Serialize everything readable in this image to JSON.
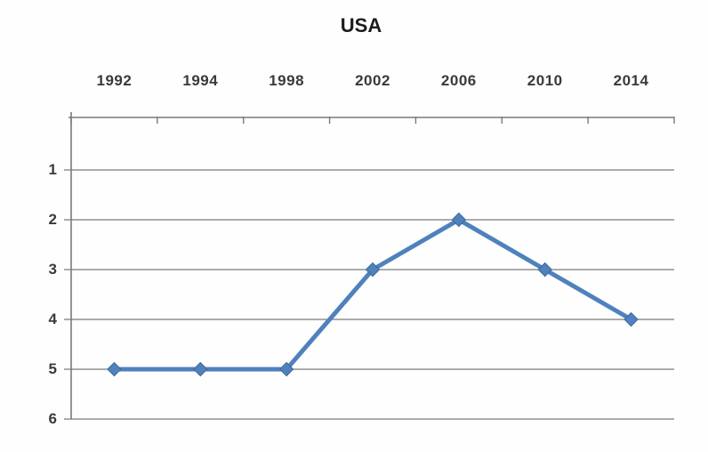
{
  "chart_data": {
    "type": "line",
    "title": "USA",
    "categories": [
      "1992",
      "1994",
      "1998",
      "2002",
      "2006",
      "2010",
      "2014"
    ],
    "series": [
      {
        "name": "USA",
        "values": [
          5,
          5,
          5,
          3,
          2,
          3,
          4
        ]
      }
    ],
    "y_ticks": [
      "1",
      "2",
      "3",
      "4",
      "5",
      "6"
    ],
    "axes": {
      "x_position": "top",
      "y_position": "left",
      "y_inverted": true,
      "y_range_shown": [
        0,
        6
      ]
    },
    "grid": true,
    "legend": "none",
    "marker": "diamond",
    "colors": {
      "line": "#4f81bd",
      "marker_fill": "#4f81bd",
      "marker_edge": "#3f689a",
      "gridline": "#8f8f8f",
      "axis": "#7a7a7a",
      "label_text": "#3a3a3a",
      "title_text": "#1c1c1c"
    }
  }
}
